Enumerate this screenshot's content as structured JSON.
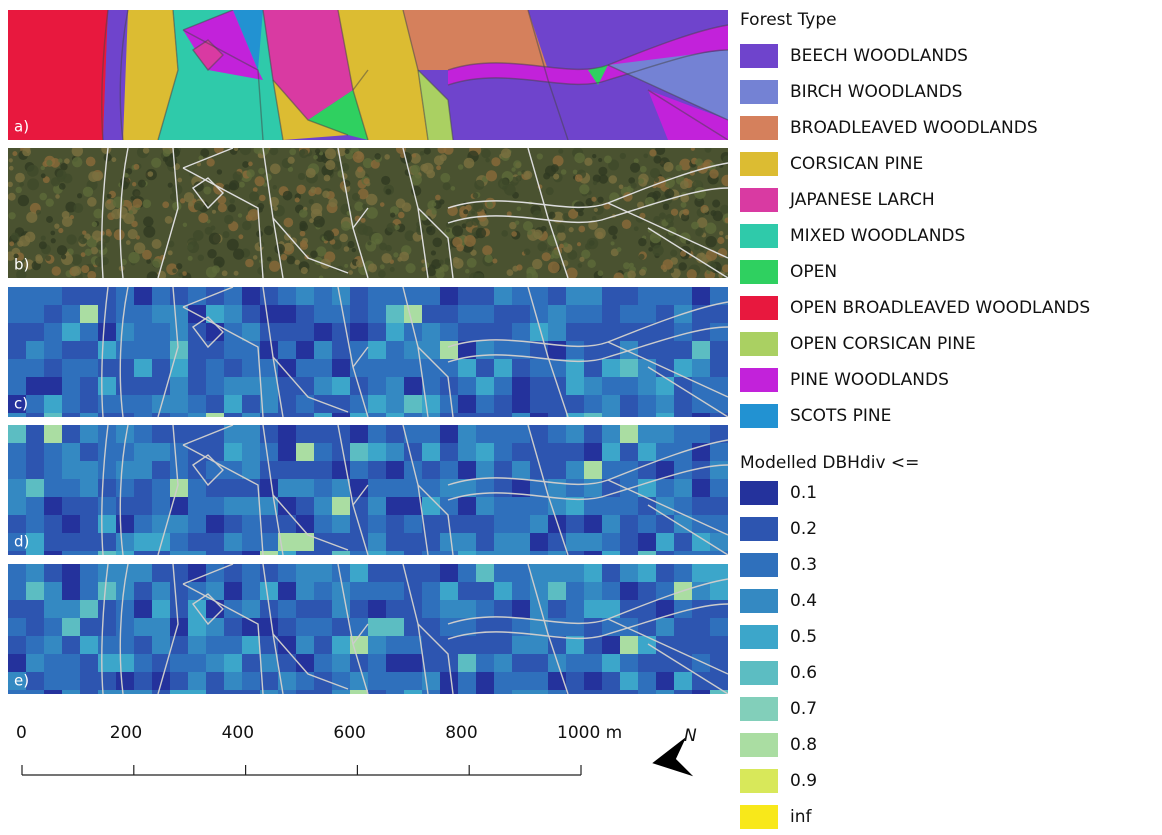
{
  "panels": [
    "a)",
    "b)",
    "c)",
    "d)",
    "e)"
  ],
  "legend": {
    "forest_type": {
      "title": "Forest Type",
      "items": [
        {
          "label": "BEECH WOODLANDS",
          "color": "#6f44cc"
        },
        {
          "label": "BIRCH WOODLANDS",
          "color": "#7482d4"
        },
        {
          "label": "BROADLEAVED WOODLANDS",
          "color": "#d5805c"
        },
        {
          "label": "CORSICAN PINE",
          "color": "#dcbc32"
        },
        {
          "label": "JAPANESE LARCH",
          "color": "#d93aa2"
        },
        {
          "label": "MIXED WOODLANDS",
          "color": "#2fcaaa"
        },
        {
          "label": "OPEN",
          "color": "#2fd060"
        },
        {
          "label": "OPEN BROADLEAVED WOODLANDS",
          "color": "#e8183e"
        },
        {
          "label": "OPEN CORSICAN PINE",
          "color": "#aad062"
        },
        {
          "label": "PINE WOODLANDS",
          "color": "#c222da"
        },
        {
          "label": "SCOTS PINE",
          "color": "#2292d2"
        }
      ]
    },
    "dbhdiv": {
      "title": "Modelled DBHdiv <=",
      "items": [
        {
          "label": "0.1",
          "color": "#24329c"
        },
        {
          "label": "0.2",
          "color": "#2d55b0"
        },
        {
          "label": "0.3",
          "color": "#2f70bc"
        },
        {
          "label": "0.4",
          "color": "#3489c2"
        },
        {
          "label": "0.5",
          "color": "#3ca6ca"
        },
        {
          "label": "0.6",
          "color": "#5cbdc2"
        },
        {
          "label": "0.7",
          "color": "#82cfba"
        },
        {
          "label": "0.8",
          "color": "#aadda2"
        },
        {
          "label": "0.9",
          "color": "#d8e85a"
        },
        {
          "label": "inf",
          "color": "#f8e81a"
        }
      ]
    }
  },
  "scale_bar": {
    "labels": [
      "0",
      "200",
      "400",
      "600",
      "800",
      "1000 m"
    ]
  },
  "north": "N"
}
